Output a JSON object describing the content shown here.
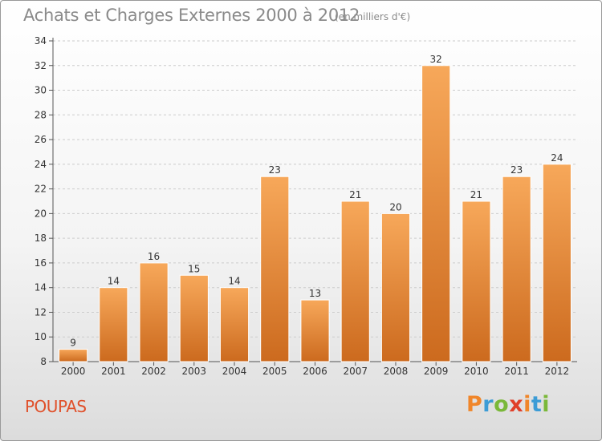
{
  "header": {
    "title": "Achats et Charges Externes 2000 à 2012",
    "subtitle": "(en milliers d'€)"
  },
  "footer": {
    "place": "POUPAS",
    "brand": "Proxiti",
    "brand_colors": [
      "#f0862a",
      "#3c9cd6",
      "#7ab839",
      "#e0402a",
      "#f0862a",
      "#3c9cd6",
      "#7ab839"
    ]
  },
  "colors": {
    "bar_top": "#f7a85a",
    "bar_bottom": "#cc6a1e",
    "axis": "#555555",
    "grid": "#cccccc",
    "place": "#e0502a"
  },
  "chart_data": {
    "type": "bar",
    "title": "Achats et Charges Externes 2000 à 2012",
    "subtitle": "(en milliers d'€)",
    "categories": [
      "2000",
      "2001",
      "2002",
      "2003",
      "2004",
      "2005",
      "2006",
      "2007",
      "2008",
      "2009",
      "2010",
      "2011",
      "2012"
    ],
    "values": [
      9,
      14,
      16,
      15,
      14,
      23,
      13,
      21,
      20,
      32,
      21,
      23,
      24
    ],
    "ylim": [
      8,
      34
    ],
    "yticks": [
      8,
      10,
      12,
      14,
      16,
      18,
      20,
      22,
      24,
      26,
      28,
      30,
      32,
      34
    ],
    "grid": "horizontal dashed",
    "legend": "none",
    "data_labels": true
  }
}
